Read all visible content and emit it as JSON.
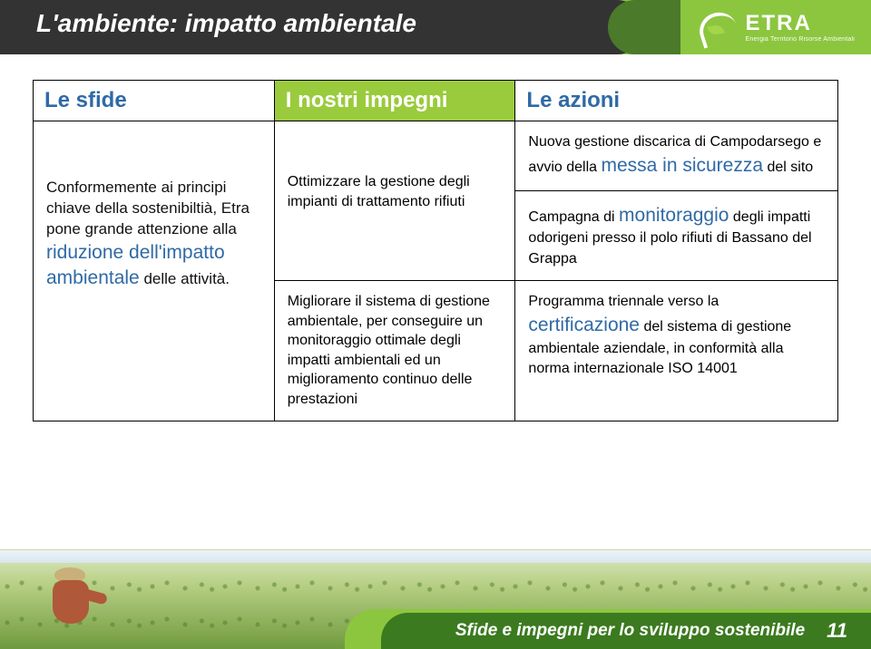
{
  "header": {
    "title": "L'ambiente: impatto ambientale",
    "logo_name": "ETRA",
    "logo_tag": "Energia Territorio Risorse Ambientali"
  },
  "colors": {
    "header_dark": "#333333",
    "header_green": "#8cc63f",
    "header_green_tab": "#4a7a2a",
    "accent_blue": "#2f6aa5",
    "table_header_green": "#9acb3c",
    "footer_dark_green": "#3b7a1f"
  },
  "columns": {
    "sfide": "Le sfide",
    "impegni": "I nostri impegni",
    "azioni": "Le azioni"
  },
  "sfide": {
    "pre": "Conformemente ai principi chiave della sostenibiltià, Etra pone grande attenzione alla ",
    "blue1": "riduzione dell'impatto ambientale",
    "post": " delle attività."
  },
  "impegni": {
    "r1": "Ottimizzare la gestione degli impianti di trattamento rifiuti",
    "r2": "Migliorare il sistema di gestione ambientale, per conseguire un monitoraggio ottimale degli impatti ambientali ed un miglioramento continuo delle prestazioni"
  },
  "azioni": {
    "r1_pre": "Nuova gestione discarica di Campodarsego e avvio della ",
    "r1_big": "messa in sicurezza",
    "r1_post": " del sito",
    "r2_pre": "Campagna di ",
    "r2_big": "monitoraggio",
    "r2_post": " degli impatti odorigeni presso il polo rifiuti di Bassano del Grappa",
    "r3_pre": "Programma triennale verso la ",
    "r3_big": "certificazione",
    "r3_post": " del sistema di gestione ambientale aziendale, in conformità alla norma internazionale ISO 14001"
  },
  "footer": {
    "label": "Sfide e impegni per lo sviluppo sostenibile",
    "page": "11"
  }
}
